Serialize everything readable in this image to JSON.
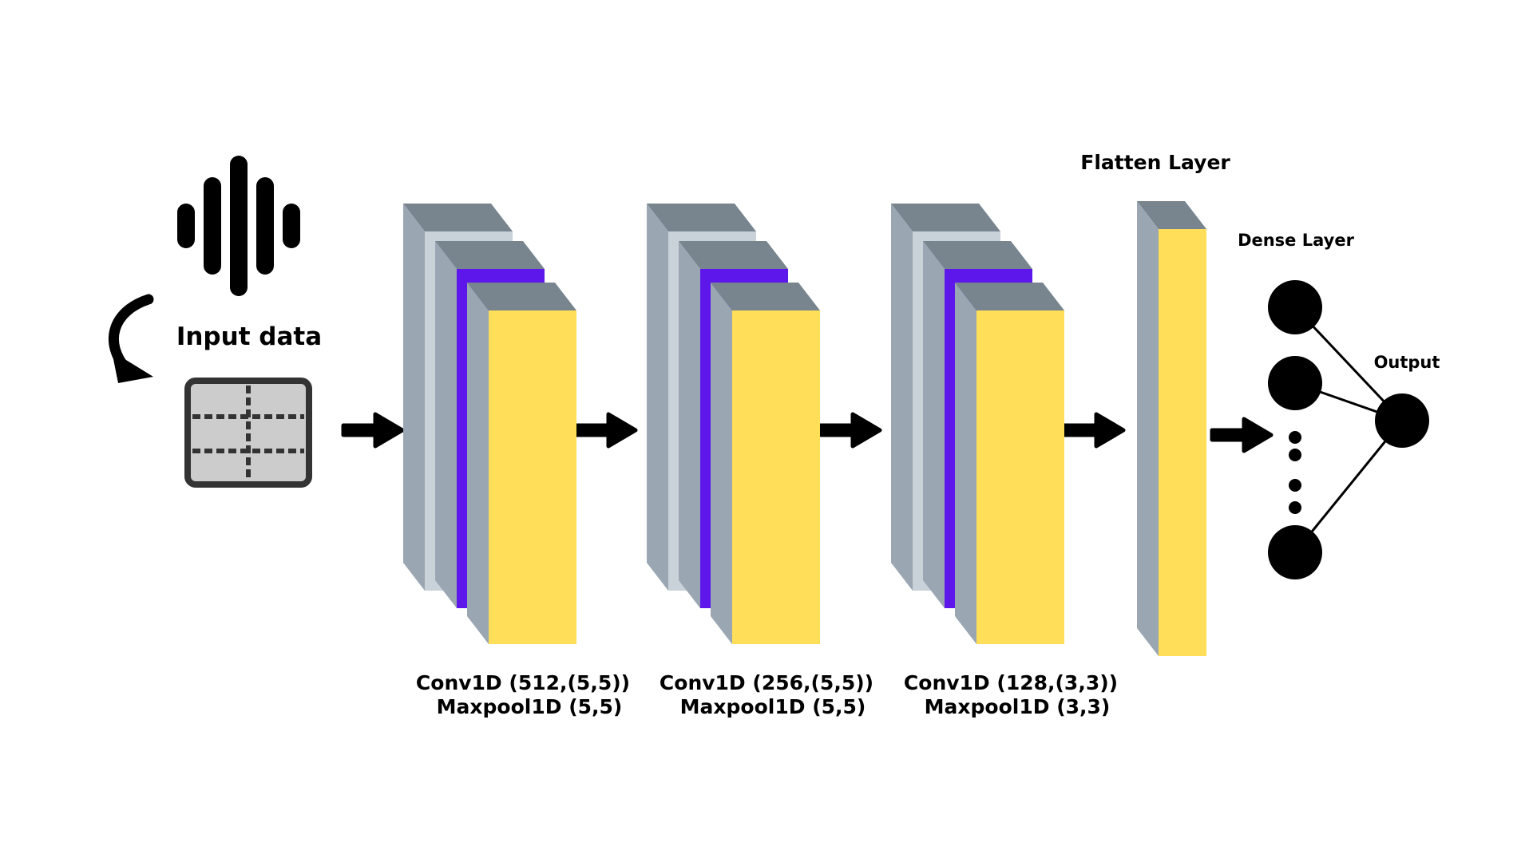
{
  "input": {
    "label": "Input data"
  },
  "conv_blocks": [
    {
      "conv_label": "Conv1D (512,(5,5))",
      "pool_label": "Maxpool1D (5,5)"
    },
    {
      "conv_label": "Conv1D (256,(5,5))",
      "pool_label": "Maxpool1D (5,5)"
    },
    {
      "conv_label": "Conv1D (128,(3,3))",
      "pool_label": "Maxpool1D (3,3)"
    }
  ],
  "flatten": {
    "label": "Flatten Layer"
  },
  "dense": {
    "label": "Dense Layer"
  },
  "output": {
    "label": "Output"
  },
  "icons": {
    "sound": "sound-wave-icon",
    "curved_arrow": "curved-arrow-icon",
    "grid": "data-grid-icon",
    "flow_arrow": "right-arrow-icon"
  },
  "colors": {
    "layer_front": "#FFDE59",
    "layer_accent": "#5E17EB",
    "layer_side": "#9AA6B2",
    "layer_top": "#78848E",
    "layer_back_face": "#C9D1D9",
    "grid_fill": "#CCCCCC",
    "grid_frame": "#333333",
    "ink": "#000000"
  }
}
